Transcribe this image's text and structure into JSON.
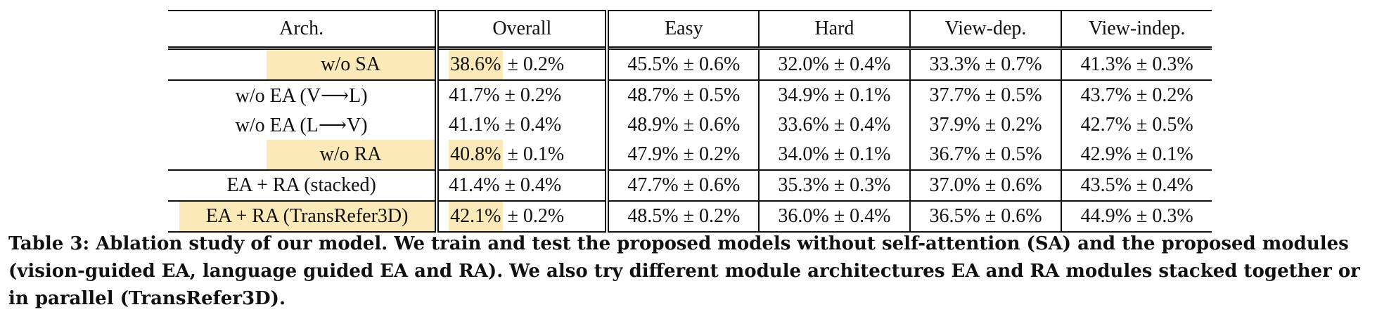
{
  "table": {
    "headers": [
      "Arch.",
      "Overall",
      "Easy",
      "Hard",
      "View-dep.",
      "View-indep."
    ],
    "rows": [
      {
        "arch": "w/o SA",
        "overall_val": "38.6%",
        "overall_sd": " ± 0.2%",
        "easy": "45.5% ± 0.6%",
        "hard": "32.0% ± 0.4%",
        "vdep": "33.3% ± 0.7%",
        "vind": "41.3% ± 0.3%",
        "highlight": true
      },
      {
        "arch": "w/o EA (V⟶L)",
        "overall_val": "41.7%",
        "overall_sd": " ± 0.2%",
        "easy": "48.7% ± 0.5%",
        "hard": "34.9% ± 0.1%",
        "vdep": "37.7% ± 0.5%",
        "vind": "43.7% ± 0.2%",
        "highlight": false
      },
      {
        "arch": "w/o EA (L⟶V)",
        "overall_val": "41.1%",
        "overall_sd": " ± 0.4%",
        "easy": "48.9% ± 0.6%",
        "hard": "33.6% ± 0.4%",
        "vdep": "37.9% ± 0.2%",
        "vind": "42.7% ± 0.5%",
        "highlight": false
      },
      {
        "arch": "w/o RA",
        "overall_val": "40.8%",
        "overall_sd": " ± 0.1%",
        "easy": "47.9% ± 0.2%",
        "hard": "34.0% ± 0.1%",
        "vdep": "36.7% ± 0.5%",
        "vind": "42.9% ± 0.1%",
        "highlight": true
      },
      {
        "arch": "EA + RA (stacked)",
        "overall_val": "41.4%",
        "overall_sd": " ± 0.4%",
        "easy": "47.7% ± 0.6%",
        "hard": "35.3% ± 0.3%",
        "vdep": "37.0% ± 0.6%",
        "vind": "43.5% ± 0.4%",
        "highlight": false
      },
      {
        "arch": "EA + RA (TransRefer3D)",
        "overall_val": "42.1%",
        "overall_sd": " ± 0.2%",
        "easy": "48.5% ± 0.2%",
        "hard": "36.0% ± 0.4%",
        "vdep": "36.5% ± 0.6%",
        "vind": "44.9% ± 0.3%",
        "highlight": true
      }
    ],
    "highlight_color": "#fbe9b7"
  },
  "caption": {
    "text": "Table 3: Ablation study of our model. We train and test the proposed models without self-attention (SA) and the proposed modules (vision-guided EA, language guided EA and RA). We also try different module architectures EA and RA modules stacked together or in parallel (TransRefer3D)."
  }
}
